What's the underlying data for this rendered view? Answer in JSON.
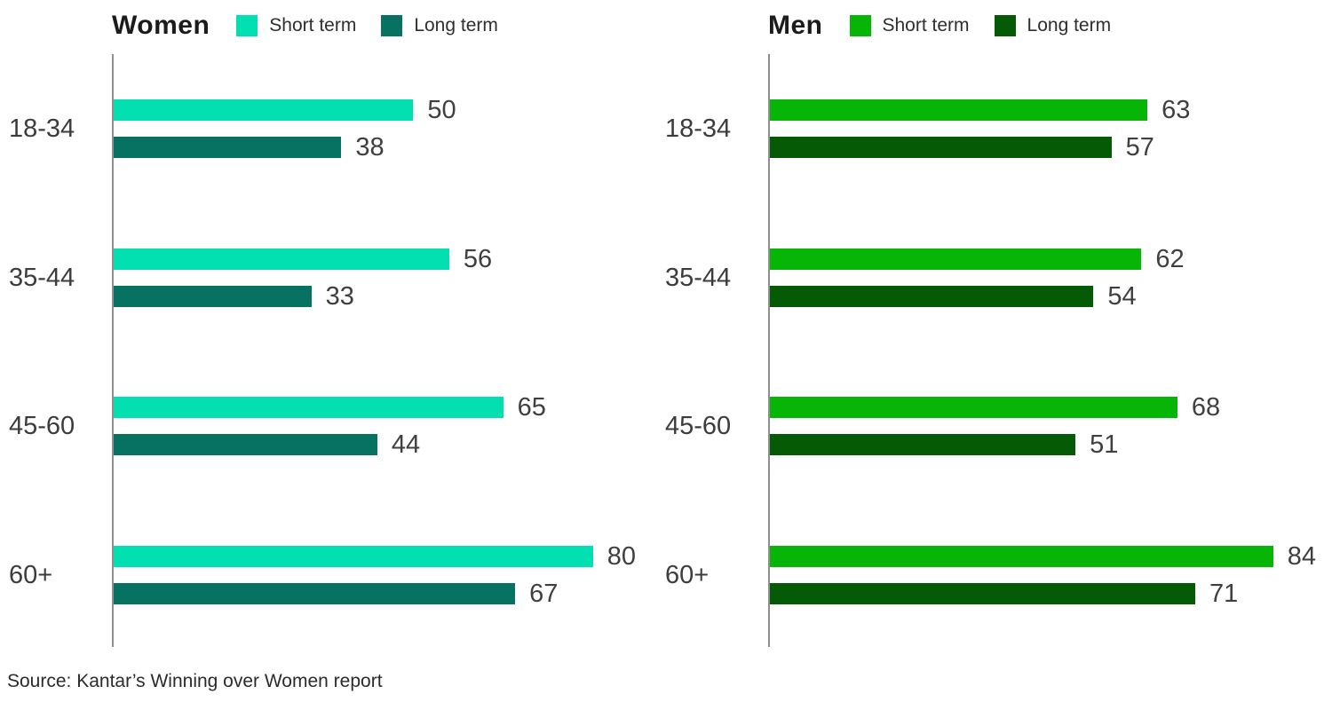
{
  "page": {
    "background": "#ffffff"
  },
  "source_note": "Source: Kantar’s Winning over Women report",
  "chart_data": [
    {
      "type": "bar",
      "orientation": "horizontal",
      "title": "Women",
      "categories": [
        "18-34",
        "35-44",
        "45-60",
        "60+"
      ],
      "series": [
        {
          "name": "Short term",
          "color": "#02DFB1",
          "values": [
            50,
            56,
            65,
            80
          ]
        },
        {
          "name": "Long term",
          "color": "#077162",
          "values": [
            38,
            33,
            44,
            67
          ]
        }
      ],
      "xlim": [
        0,
        100
      ],
      "grid": false,
      "legend_position": "top",
      "value_labels": true,
      "axis_line_color": "#8f8f8f"
    },
    {
      "type": "bar",
      "orientation": "horizontal",
      "title": "Men",
      "categories": [
        "18-34",
        "35-44",
        "45-60",
        "60+"
      ],
      "series": [
        {
          "name": "Short term",
          "color": "#07B507",
          "values": [
            63,
            62,
            68,
            84
          ]
        },
        {
          "name": "Long term",
          "color": "#055A06",
          "values": [
            57,
            54,
            51,
            71
          ]
        }
      ],
      "xlim": [
        0,
        100
      ],
      "grid": false,
      "legend_position": "top",
      "value_labels": true,
      "axis_line_color": "#8f8f8f"
    }
  ]
}
